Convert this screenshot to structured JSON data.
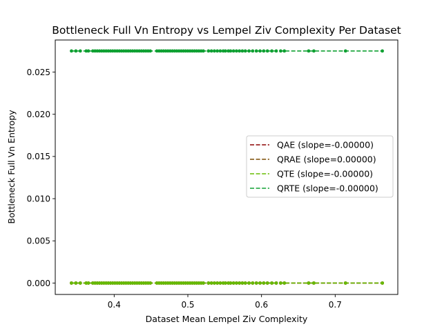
{
  "chart_data": {
    "type": "scatter",
    "title": "Bottleneck Full Vn Entropy vs Lempel Ziv Complexity Per Dataset",
    "xlabel": "Dataset Mean Lempel Ziv Complexity",
    "ylabel": "Bottleneck Full Vn Entropy",
    "xlim": [
      0.32,
      0.785
    ],
    "ylim": [
      -0.00135,
      0.0288
    ],
    "xticks": [
      0.4,
      0.5,
      0.6,
      0.7
    ],
    "xtick_labels": [
      "0.4",
      "0.5",
      "0.6",
      "0.7"
    ],
    "yticks": [
      0.0,
      0.005,
      0.01,
      0.015,
      0.02,
      0.025
    ],
    "ytick_labels": [
      "0.000",
      "0.005",
      "0.010",
      "0.015",
      "0.020",
      "0.025"
    ],
    "grid": false,
    "legend_position": "center-right",
    "x": [
      0.342,
      0.348,
      0.354,
      0.362,
      0.365,
      0.371,
      0.374,
      0.377,
      0.38,
      0.383,
      0.386,
      0.389,
      0.392,
      0.395,
      0.398,
      0.401,
      0.404,
      0.407,
      0.41,
      0.413,
      0.416,
      0.419,
      0.422,
      0.425,
      0.428,
      0.431,
      0.434,
      0.437,
      0.44,
      0.443,
      0.446,
      0.449,
      0.458,
      0.461,
      0.464,
      0.467,
      0.47,
      0.473,
      0.476,
      0.479,
      0.482,
      0.485,
      0.488,
      0.491,
      0.494,
      0.497,
      0.5,
      0.503,
      0.506,
      0.509,
      0.512,
      0.515,
      0.518,
      0.521,
      0.528,
      0.532,
      0.536,
      0.54,
      0.544,
      0.548,
      0.551,
      0.555,
      0.558,
      0.562,
      0.566,
      0.57,
      0.574,
      0.578,
      0.583,
      0.588,
      0.593,
      0.598,
      0.603,
      0.608,
      0.614,
      0.62,
      0.626,
      0.631,
      0.664,
      0.671,
      0.714,
      0.764
    ],
    "series": [
      {
        "name": "QAE (slope=-0.00000)",
        "color": "#8b0000",
        "y_value": 0.0,
        "slope": -0.0
      },
      {
        "name": "QRAE (slope=0.00000)",
        "color": "#7a4a00",
        "y_value": 0.0,
        "slope": 0.0
      },
      {
        "name": "QTE (slope=-0.00000)",
        "color": "#66bb00",
        "y_value": 0.0,
        "slope": -0.0
      },
      {
        "name": "QRTE (slope=-0.00000)",
        "color": "#0fa032",
        "y_value": 0.0275,
        "slope": -0.0
      }
    ]
  }
}
